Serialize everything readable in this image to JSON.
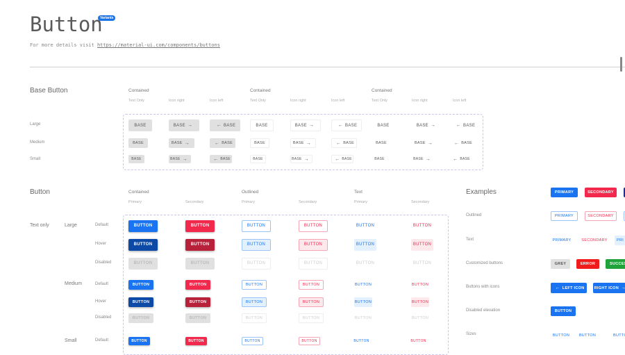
{
  "header": {
    "title": "Button",
    "badge": "Variants",
    "subtitle": "For more details visit",
    "link": "https://material-ui.com/components/buttons"
  },
  "base_button": {
    "title": "Base Button",
    "groups": [
      "Contained",
      "Contained",
      "Contained"
    ],
    "sub_headers": [
      "Text Only",
      "Icon right",
      "Icon left",
      "Text Only",
      "Icon right",
      "Icon left",
      "Text Only",
      "Icon right",
      "Icon left"
    ],
    "sizes": [
      "Large",
      "Medium",
      "Small"
    ],
    "label": "BASE"
  },
  "button_section": {
    "title": "Button",
    "groups": [
      "Contained",
      "Outlined",
      "Text"
    ],
    "sub_headers": [
      "Primary",
      "Secondary",
      "Primary",
      "Secondary",
      "Primary",
      "Secondary"
    ],
    "category": "Text only",
    "sizes": [
      {
        "name": "Large",
        "states": [
          "Default",
          "Hover",
          "Disabled"
        ]
      },
      {
        "name": "Medium",
        "states": [
          "Default",
          "Hover",
          "Disabled"
        ]
      },
      {
        "name": "Small",
        "states": [
          "Default"
        ]
      }
    ],
    "label": "BUTTON"
  },
  "examples": {
    "title": "Examples",
    "row_labels": [
      "Outlined",
      "Text",
      "Customized buttons",
      "Buttons with icons",
      "Disabled elevation",
      "Sizes"
    ],
    "contained": [
      "PRIMARY",
      "SECONDARY"
    ],
    "outlined": [
      "PRIMARY",
      "SECONDARY"
    ],
    "text": [
      "PRIMARY",
      "SECONDARY",
      "PRI"
    ],
    "customized": [
      "GREY",
      "ERROR",
      "SUCCESS"
    ],
    "icons": [
      "LEFT ICON",
      "RIGHT ICON"
    ],
    "disabled_elevation": "BUTTON",
    "sizes": [
      "BUTTON",
      "BUTTON",
      "BUTTON"
    ]
  },
  "colors": {
    "primary": "#1a73f0",
    "primary_hover": "#0d4aa8",
    "secondary": "#f2294d",
    "secondary_hover": "#b8213a",
    "success": "#1fa33a",
    "navy": "#1c2f8a"
  }
}
